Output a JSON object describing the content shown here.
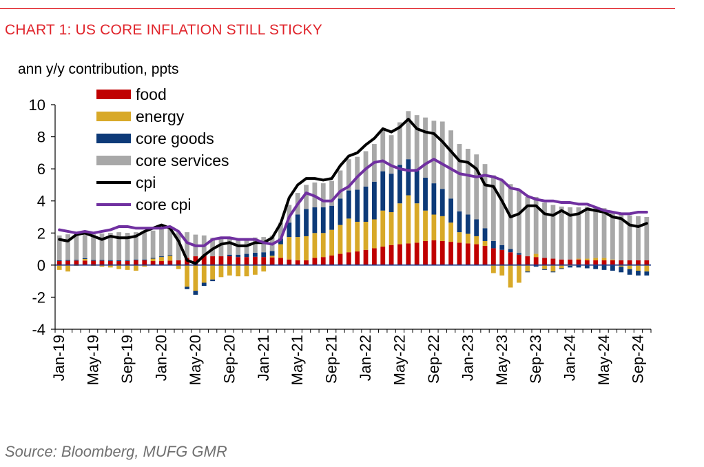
{
  "chart_title": "CHART 1:  US CORE INFLATION STILL STICKY",
  "source": "Source: Bloomberg, MUFG GMR",
  "chart_data": {
    "type": "bar",
    "stacked": true,
    "ylabel": "ann y/y  contribution, ppts",
    "ylim": [
      -4,
      10
    ],
    "yticks": [
      10,
      8,
      6,
      4,
      2,
      0,
      -2,
      -4
    ],
    "grid": false,
    "legend_position": "top-left",
    "x_tick_labels": [
      "Jan-19",
      "May-19",
      "Sep-19",
      "Jan-20",
      "May-20",
      "Sep-20",
      "Jan-21",
      "May-21",
      "Sep-21",
      "Jan-22",
      "May-22",
      "Sep-22",
      "Jan-23",
      "May-23",
      "Sep-23",
      "Jan-24",
      "May-24",
      "Sep-24"
    ],
    "x_tick_every": 4,
    "colors": {
      "food": "#c00000",
      "energy": "#d8a928",
      "core_goods": "#0d3a78",
      "core_services": "#a8a8a8",
      "cpi": "#000000",
      "core_cpi": "#7030a0",
      "zero_line": "#1f3a8a"
    },
    "categories": [
      "Jan-19",
      "Feb-19",
      "Mar-19",
      "Apr-19",
      "May-19",
      "Jun-19",
      "Jul-19",
      "Aug-19",
      "Sep-19",
      "Oct-19",
      "Nov-19",
      "Dec-19",
      "Jan-20",
      "Feb-20",
      "Mar-20",
      "Apr-20",
      "May-20",
      "Jun-20",
      "Jul-20",
      "Aug-20",
      "Sep-20",
      "Oct-20",
      "Nov-20",
      "Dec-20",
      "Jan-21",
      "Feb-21",
      "Mar-21",
      "Apr-21",
      "May-21",
      "Jun-21",
      "Jul-21",
      "Aug-21",
      "Sep-21",
      "Oct-21",
      "Nov-21",
      "Dec-21",
      "Jan-22",
      "Feb-22",
      "Mar-22",
      "Apr-22",
      "May-22",
      "Jun-22",
      "Jul-22",
      "Aug-22",
      "Sep-22",
      "Oct-22",
      "Nov-22",
      "Dec-22",
      "Jan-23",
      "Feb-23",
      "Mar-23",
      "Apr-23",
      "May-23",
      "Jun-23",
      "Jul-23",
      "Aug-23",
      "Sep-23",
      "Oct-23",
      "Nov-23",
      "Dec-23",
      "Jan-24",
      "Feb-24",
      "Mar-24",
      "Apr-24",
      "May-24",
      "Jun-24",
      "Jul-24",
      "Aug-24",
      "Sep-24",
      "Oct-24"
    ],
    "series": [
      {
        "name": "food",
        "kind": "bar",
        "values": [
          0.25,
          0.27,
          0.28,
          0.28,
          0.27,
          0.27,
          0.26,
          0.25,
          0.26,
          0.3,
          0.3,
          0.25,
          0.25,
          0.28,
          0.3,
          0.45,
          0.55,
          0.6,
          0.55,
          0.55,
          0.55,
          0.5,
          0.5,
          0.52,
          0.5,
          0.48,
          0.45,
          0.35,
          0.3,
          0.3,
          0.45,
          0.5,
          0.6,
          0.7,
          0.8,
          0.85,
          0.95,
          1.05,
          1.15,
          1.25,
          1.3,
          1.35,
          1.4,
          1.5,
          1.55,
          1.5,
          1.45,
          1.4,
          1.35,
          1.3,
          1.2,
          1.05,
          0.95,
          0.8,
          0.65,
          0.55,
          0.5,
          0.45,
          0.4,
          0.35,
          0.35,
          0.35,
          0.3,
          0.3,
          0.3,
          0.3,
          0.3,
          0.3,
          0.3,
          0.3
        ]
      },
      {
        "name": "energy",
        "kind": "bar",
        "values": [
          -0.3,
          -0.4,
          -0.05,
          0.1,
          -0.05,
          -0.1,
          -0.15,
          -0.25,
          -0.3,
          -0.35,
          -0.1,
          0.15,
          0.25,
          0.3,
          -0.25,
          -1.35,
          -1.6,
          -1.1,
          -0.9,
          -0.75,
          -0.65,
          -0.7,
          -0.7,
          -0.6,
          -0.4,
          0.1,
          0.85,
          1.4,
          1.45,
          1.5,
          1.55,
          1.5,
          1.6,
          1.8,
          2.1,
          1.85,
          1.75,
          1.8,
          2.25,
          2.05,
          2.55,
          3.0,
          2.45,
          1.9,
          1.6,
          1.55,
          1.2,
          0.65,
          0.6,
          0.5,
          0.3,
          -0.5,
          -0.65,
          -1.4,
          -1.1,
          -0.4,
          0.2,
          -0.25,
          -0.4,
          -0.2,
          -0.05,
          0.05,
          0.1,
          0.15,
          0.15,
          0.05,
          -0.1,
          -0.25,
          -0.35,
          -0.4
        ]
      },
      {
        "name": "core goods",
        "kind": "bar",
        "values": [
          0.05,
          0.05,
          0.05,
          0.05,
          0.05,
          0.05,
          0.05,
          0.05,
          0.05,
          0.05,
          0.05,
          0.05,
          0.05,
          0.05,
          0.0,
          -0.15,
          -0.25,
          -0.2,
          -0.1,
          0.0,
          0.1,
          0.15,
          0.2,
          0.25,
          0.3,
          0.3,
          0.35,
          0.9,
          1.4,
          1.7,
          1.6,
          1.6,
          1.5,
          1.65,
          1.75,
          2.0,
          2.2,
          2.35,
          2.45,
          2.4,
          2.4,
          2.25,
          2.15,
          2.05,
          1.95,
          1.7,
          1.5,
          1.3,
          1.2,
          1.05,
          0.8,
          0.45,
          0.3,
          0.2,
          0.1,
          -0.05,
          -0.1,
          -0.05,
          -0.05,
          -0.05,
          -0.1,
          -0.15,
          -0.2,
          -0.25,
          -0.3,
          -0.35,
          -0.35,
          -0.35,
          -0.3,
          -0.25
        ]
      },
      {
        "name": "core services",
        "kind": "bar",
        "values": [
          1.55,
          1.6,
          1.6,
          1.65,
          1.6,
          1.65,
          1.7,
          1.75,
          1.7,
          1.7,
          1.7,
          1.7,
          1.75,
          1.75,
          1.75,
          1.6,
          1.35,
          1.25,
          1.15,
          1.1,
          1.05,
          1.0,
          0.95,
          0.95,
          0.95,
          0.95,
          1.0,
          1.1,
          1.35,
          1.5,
          1.55,
          1.5,
          1.55,
          1.75,
          1.95,
          2.05,
          2.2,
          2.35,
          2.55,
          2.4,
          2.65,
          3.0,
          3.35,
          3.75,
          3.9,
          4.2,
          4.25,
          4.2,
          4.1,
          4.05,
          4.0,
          4.1,
          4.0,
          4.05,
          3.95,
          3.7,
          3.55,
          3.45,
          3.35,
          3.3,
          3.25,
          3.2,
          3.25,
          3.2,
          3.1,
          3.0,
          2.9,
          2.8,
          2.75,
          2.7
        ]
      },
      {
        "name": "cpi",
        "kind": "line",
        "values": [
          1.6,
          1.5,
          1.9,
          2.0,
          1.8,
          1.6,
          1.8,
          1.7,
          1.7,
          1.8,
          2.1,
          2.3,
          2.5,
          2.3,
          1.5,
          0.3,
          0.1,
          0.6,
          1.0,
          1.3,
          1.4,
          1.2,
          1.2,
          1.4,
          1.4,
          1.7,
          2.6,
          4.2,
          5.0,
          5.4,
          5.4,
          5.3,
          5.4,
          6.2,
          6.8,
          7.0,
          7.5,
          7.9,
          8.5,
          8.3,
          8.6,
          9.1,
          8.5,
          8.3,
          8.2,
          7.7,
          7.1,
          6.5,
          6.4,
          6.0,
          5.0,
          4.9,
          4.0,
          3.0,
          3.2,
          3.7,
          3.7,
          3.2,
          3.1,
          3.4,
          3.1,
          3.2,
          3.5,
          3.4,
          3.3,
          3.0,
          2.9,
          2.5,
          2.4,
          2.6
        ]
      },
      {
        "name": "core cpi",
        "kind": "line",
        "values": [
          2.2,
          2.1,
          2.0,
          2.1,
          2.0,
          2.1,
          2.2,
          2.4,
          2.4,
          2.3,
          2.3,
          2.3,
          2.3,
          2.4,
          2.1,
          1.4,
          1.2,
          1.2,
          1.6,
          1.7,
          1.7,
          1.6,
          1.6,
          1.6,
          1.4,
          1.3,
          1.6,
          3.0,
          3.8,
          4.5,
          4.3,
          4.0,
          4.0,
          4.6,
          4.9,
          5.5,
          6.0,
          6.4,
          6.5,
          6.2,
          6.0,
          5.9,
          5.9,
          6.3,
          6.6,
          6.3,
          6.0,
          5.7,
          5.6,
          5.5,
          5.6,
          5.5,
          5.3,
          4.8,
          4.7,
          4.3,
          4.1,
          4.0,
          4.0,
          3.9,
          3.9,
          3.8,
          3.8,
          3.6,
          3.4,
          3.3,
          3.2,
          3.2,
          3.3,
          3.3
        ]
      }
    ]
  }
}
